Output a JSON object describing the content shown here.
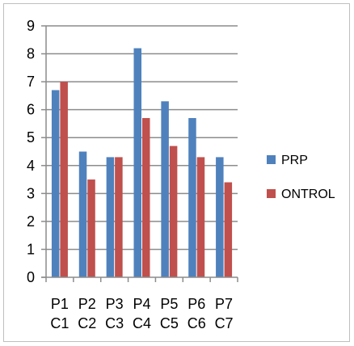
{
  "chart_data": {
    "type": "bar",
    "categories": [
      [
        "P1",
        "C1"
      ],
      [
        "P2",
        "C2"
      ],
      [
        "P3",
        "C3"
      ],
      [
        "P4",
        "C4"
      ],
      [
        "P5",
        "C5"
      ],
      [
        "P6",
        "C6"
      ],
      [
        "P7",
        "C7"
      ]
    ],
    "series": [
      {
        "name": "PRP",
        "color": "#4f81bd",
        "values": [
          6.7,
          4.5,
          4.3,
          8.2,
          6.3,
          5.7,
          4.3
        ]
      },
      {
        "name": "ONTROL",
        "color": "#c0504d",
        "values": [
          7.0,
          3.5,
          4.3,
          5.7,
          4.7,
          4.3,
          3.4
        ]
      }
    ],
    "ylim": [
      0,
      9
    ],
    "yticks": [
      "0",
      "1",
      "2",
      "3",
      "4",
      "5",
      "6",
      "7",
      "8",
      "9"
    ],
    "grid": true,
    "legend_position": "right",
    "title": "",
    "xlabel": "",
    "ylabel": ""
  }
}
